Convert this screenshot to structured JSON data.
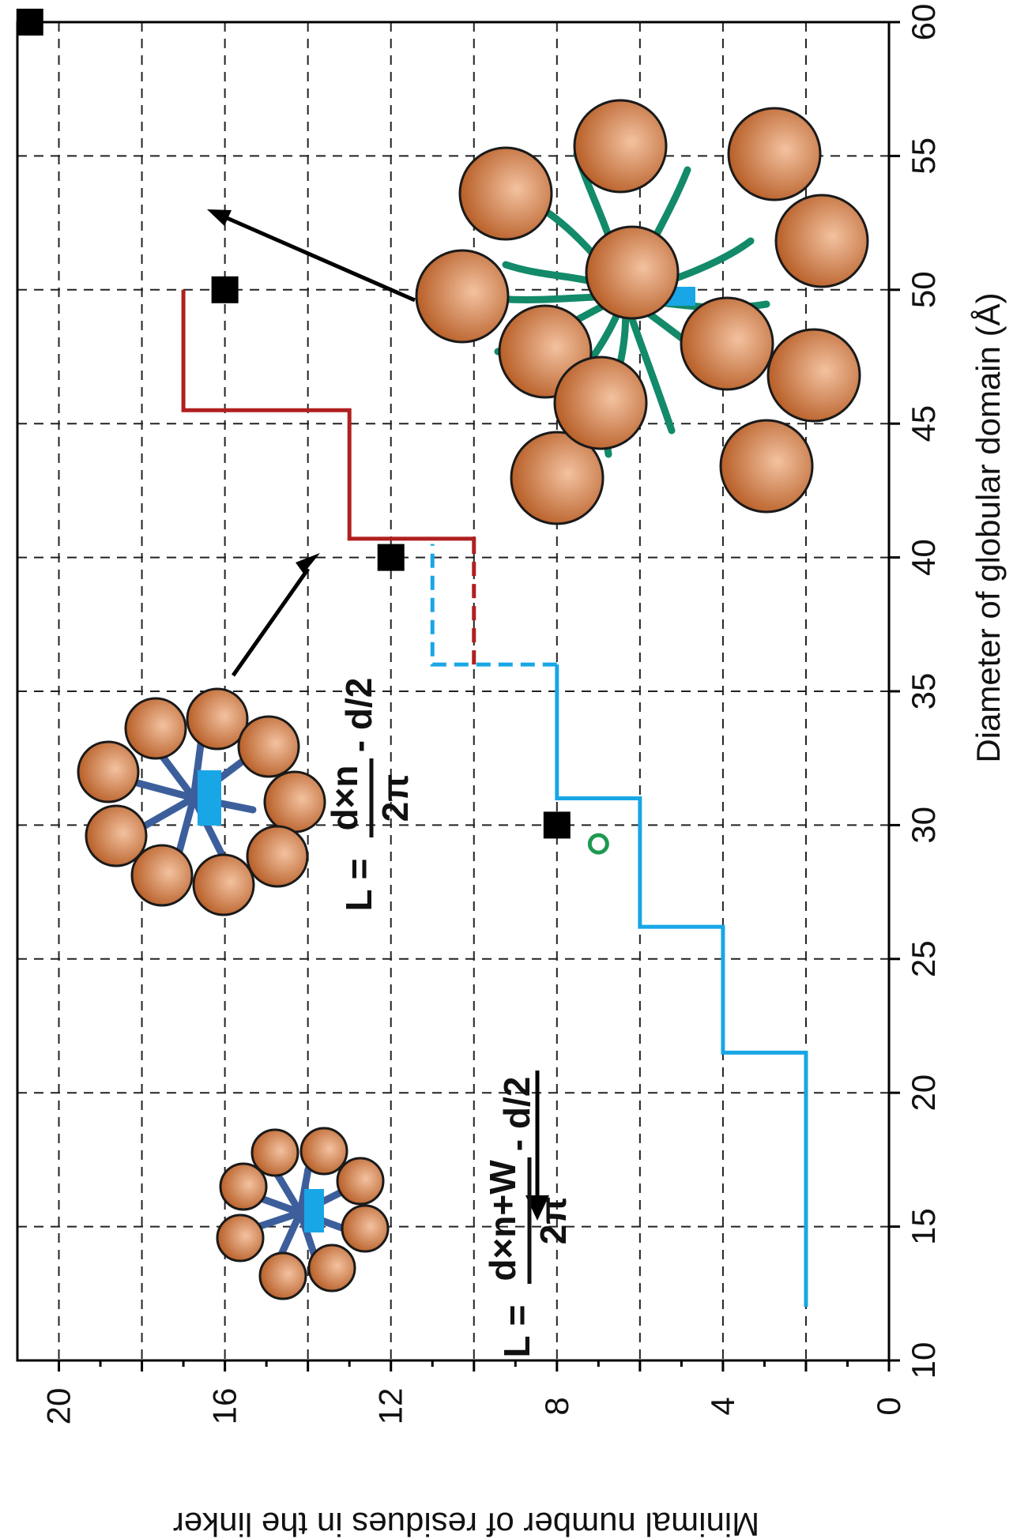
{
  "chart_data": {
    "type": "line",
    "xlabel": "Diameter of globular domain (Å)",
    "ylabel": "Minimal number of residues in the linker",
    "xlim": [
      10,
      60
    ],
    "ylim": [
      0,
      21
    ],
    "x_ticks": [
      "10",
      "15",
      "20",
      "25",
      "30",
      "35",
      "40",
      "45",
      "50",
      "55",
      "60"
    ],
    "y_ticks": [
      "0",
      "4",
      "8",
      "12",
      "16",
      "20"
    ],
    "grid": true,
    "orientation": "rotated-90-clockwise",
    "series": [
      {
        "style": "solid",
        "color": "#19a6e6",
        "points": [
          [
            12,
            2
          ],
          [
            21.5,
            2
          ],
          [
            21.5,
            4
          ],
          [
            26.2,
            4
          ],
          [
            26.2,
            6
          ],
          [
            31,
            6
          ],
          [
            31,
            8
          ],
          [
            36,
            8
          ]
        ]
      },
      {
        "style": "dashed",
        "color": "#19a6e6",
        "points": [
          [
            36,
            8
          ],
          [
            36,
            11
          ],
          [
            40.5,
            11
          ]
        ]
      },
      {
        "style": "dashed",
        "color": "#b01f1f",
        "points": [
          [
            36,
            10
          ],
          [
            40.5,
            10
          ]
        ]
      },
      {
        "style": "solid",
        "color": "#b01f1f",
        "points": [
          [
            40.5,
            10
          ],
          [
            40.7,
            10
          ],
          [
            40.7,
            13
          ],
          [
            45.5,
            13
          ],
          [
            45.5,
            17
          ],
          [
            50,
            17
          ]
        ]
      }
    ],
    "markers": [
      {
        "x": 30,
        "y": 8,
        "shape": "square",
        "color": "#000000"
      },
      {
        "x": 40,
        "y": 12,
        "shape": "square",
        "color": "#000000"
      },
      {
        "x": 50,
        "y": 16,
        "shape": "square",
        "color": "#000000"
      },
      {
        "x": 60,
        "y": 20.7,
        "shape": "square",
        "color": "#000000"
      },
      {
        "x": 29.3,
        "y": 7,
        "shape": "open-circle",
        "color": "#1e9a50"
      }
    ],
    "annotations": {
      "formula1": {
        "lhs": "L =",
        "numerator": "d×n+W",
        "denominator": "2π",
        "rhs": "- d/2"
      },
      "formula2": {
        "lhs": "L =",
        "numerator": "d×n",
        "denominator": "2π",
        "rhs": "- d/2"
      }
    },
    "colors": {
      "sphere": "#c46a32",
      "sphere_highlight": "#f3c2a0",
      "core_small": "#3c5f9c",
      "core_large": "#138a6a",
      "accent": "#19a6e6"
    }
  }
}
